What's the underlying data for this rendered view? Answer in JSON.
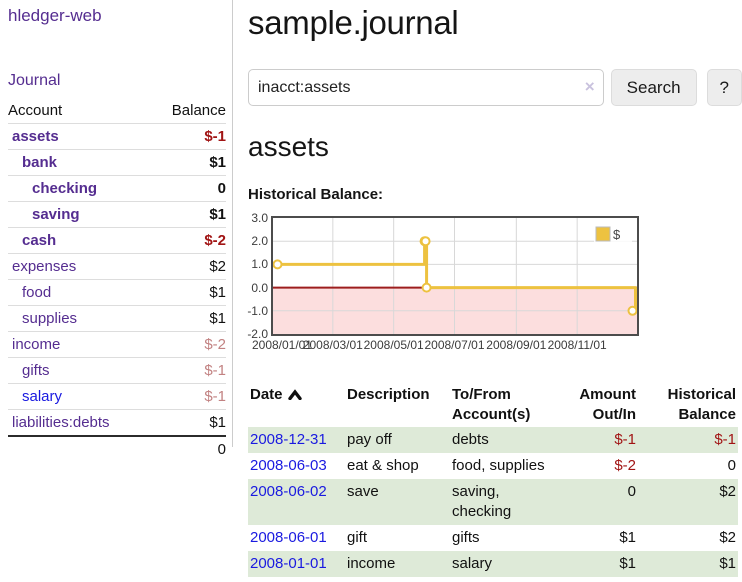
{
  "brand": "hledger-web",
  "nav": {
    "journal": "Journal"
  },
  "header": {
    "title": "sample.journal"
  },
  "search": {
    "value": "inacct:assets",
    "clear": "×",
    "button": "Search",
    "help": "?"
  },
  "sidebar": {
    "columns": {
      "account": "Account",
      "balance": "Balance"
    },
    "accounts": [
      {
        "name": "assets",
        "level": 1,
        "bold": true,
        "link": "purple",
        "balance": "$-1",
        "tone": "red"
      },
      {
        "name": "bank",
        "level": 2,
        "bold": true,
        "link": "purple",
        "balance": "$1",
        "tone": "black"
      },
      {
        "name": "checking",
        "level": 3,
        "bold": true,
        "link": "purple",
        "balance": "0",
        "tone": "black"
      },
      {
        "name": "saving",
        "level": 3,
        "bold": true,
        "link": "purple",
        "balance": "$1",
        "tone": "black"
      },
      {
        "name": "cash",
        "level": 2,
        "bold": true,
        "link": "purple",
        "balance": "$-2",
        "tone": "red"
      },
      {
        "name": "expenses",
        "level": 1,
        "bold": false,
        "link": "purple",
        "balance": "$2",
        "tone": "black"
      },
      {
        "name": "food",
        "level": 2,
        "bold": false,
        "link": "purple",
        "balance": "$1",
        "tone": "black"
      },
      {
        "name": "supplies",
        "level": 2,
        "bold": false,
        "link": "purple",
        "balance": "$1",
        "tone": "black"
      },
      {
        "name": "income",
        "level": 1,
        "bold": false,
        "link": "purple",
        "balance": "$-2",
        "tone": "rose"
      },
      {
        "name": "gifts",
        "level": 2,
        "bold": false,
        "link": "purple",
        "balance": "$-1",
        "tone": "rose"
      },
      {
        "name": "salary",
        "level": 2,
        "bold": false,
        "link": "blue",
        "balance": "$-1",
        "tone": "rose"
      },
      {
        "name": "liabilities:debts",
        "level": 1,
        "bold": false,
        "link": "purple",
        "balance": "$1",
        "tone": "black"
      }
    ],
    "total": "0"
  },
  "register": {
    "heading": "assets",
    "chart_title": "Historical Balance:",
    "columns": [
      {
        "l1": "Date",
        "l2": "",
        "align": "left",
        "sort": "asc"
      },
      {
        "l1": "Description",
        "l2": "",
        "align": "left"
      },
      {
        "l1": "To/From",
        "l2": "Account(s)",
        "align": "left"
      },
      {
        "l1": "Amount",
        "l2": "Out/In",
        "align": "right"
      },
      {
        "l1": "Historical",
        "l2": "Balance",
        "align": "right"
      }
    ],
    "rows": [
      {
        "date": "2008-12-31",
        "description": "pay off",
        "accounts": "debts",
        "amount": "$-1",
        "amount_tone": "red",
        "balance": "$-1",
        "balance_tone": "red",
        "shaded": true
      },
      {
        "date": "2008-06-03",
        "description": "eat & shop",
        "accounts": "food, supplies",
        "amount": "$-2",
        "amount_tone": "red",
        "balance": "0",
        "balance_tone": "black",
        "shaded": false
      },
      {
        "date": "2008-06-02",
        "description": "save",
        "accounts": "saving, checking",
        "amount": "0",
        "amount_tone": "black",
        "balance": "$2",
        "balance_tone": "black",
        "shaded": true
      },
      {
        "date": "2008-06-01",
        "description": "gift",
        "accounts": "gifts",
        "amount": "$1",
        "amount_tone": "black",
        "balance": "$2",
        "balance_tone": "black",
        "shaded": false
      },
      {
        "date": "2008-01-01",
        "description": "income",
        "accounts": "salary",
        "amount": "$1",
        "amount_tone": "black",
        "balance": "$1",
        "balance_tone": "black",
        "shaded": true
      }
    ]
  },
  "chart_data": {
    "type": "line",
    "style": "steps",
    "title": "Historical Balance:",
    "xlabel": "",
    "ylabel": "",
    "series": [
      {
        "name": "$",
        "color": "#edc240",
        "points": [
          [
            "2008-01-01",
            1
          ],
          [
            "2008-06-01",
            2
          ],
          [
            "2008-06-02",
            2
          ],
          [
            "2008-06-03",
            0
          ],
          [
            "2008-12-31",
            -1
          ]
        ]
      }
    ],
    "xlim": [
      "2008-01-01",
      "2008-12-31"
    ],
    "ylim": [
      -2,
      3
    ],
    "x_ticks": [
      "2008/01/01",
      "2008/03/01",
      "2008/05/01",
      "2008/07/01",
      "2008/09/01",
      "2008/11/01"
    ],
    "y_ticks": [
      3.0,
      2.0,
      1.0,
      0.0,
      -1.0,
      -2.0
    ],
    "grid": true,
    "legend": {
      "label": "$",
      "position": "top-right"
    },
    "negative_region_color": "#fcdede",
    "zero_line_color": "#9d1e1e"
  },
  "colors": {
    "link_purple": "#552d90",
    "link_blue": "#1a1ae0",
    "negative_strong": "#a11414",
    "negative_muted": "#c28282",
    "row_shade_green": "#deead8",
    "chart_line_gold": "#edc240",
    "chart_negative_fill": "#fcdede",
    "chart_zero_line": "#9d1e1e"
  }
}
